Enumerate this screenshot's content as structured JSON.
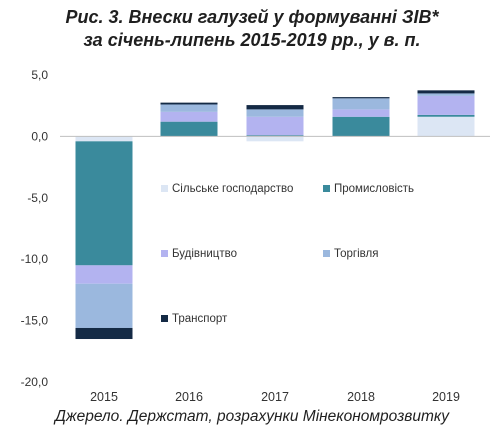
{
  "title_line1": "Рис. 3. Внески галузей у формуванні ЗІВ*",
  "title_line2": "за січень-липень 2015-2019 рр., у в. п.",
  "source": "Джерело. Держстат, розрахунки Мінекономрозвитку",
  "chart_data": {
    "type": "bar",
    "stacked": true,
    "categories": [
      "2015",
      "2016",
      "2017",
      "2018",
      "2019"
    ],
    "ylim": [
      -20,
      5
    ],
    "yticks": [
      "5,0",
      "0,0",
      "-5,0",
      "-10,0",
      "-15,0",
      "-20,0"
    ],
    "ytick_values": [
      5,
      0,
      -5,
      -10,
      -15,
      -20
    ],
    "grid": false,
    "legend_position": "inside-right",
    "series": [
      {
        "name": "Сільське господарство",
        "color": "#dce6f4",
        "values": [
          -0.4,
          0.0,
          -0.4,
          0.0,
          1.6
        ]
      },
      {
        "name": "Промисловість",
        "color": "#3a8a9c",
        "values": [
          -10.1,
          1.2,
          0.1,
          1.6,
          0.15
        ]
      },
      {
        "name": "Будівництво",
        "color": "#b3b3f0",
        "values": [
          -1.5,
          0.8,
          1.5,
          0.6,
          1.55
        ]
      },
      {
        "name": "Торгівля",
        "color": "#9bb8de",
        "values": [
          -3.6,
          0.6,
          0.6,
          0.9,
          0.2
        ]
      },
      {
        "name": "Транспорт",
        "color": "#142a45",
        "values": [
          -0.9,
          0.15,
          0.35,
          0.1,
          0.25
        ]
      }
    ]
  }
}
